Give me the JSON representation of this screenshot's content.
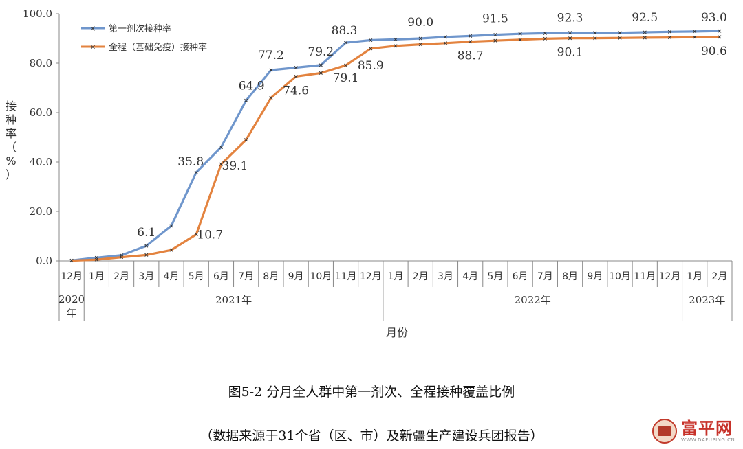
{
  "chart_data": {
    "type": "line",
    "y_axis_title": "接种率（%）",
    "xlabel": "月份",
    "ylim": [
      0,
      100
    ],
    "yticks": [
      "0.0",
      "20.0",
      "40.0",
      "60.0",
      "80.0",
      "100.0"
    ],
    "ytick_values": [
      0,
      20,
      40,
      60,
      80,
      100
    ],
    "months": [
      "12月",
      "1月",
      "2月",
      "3月",
      "4月",
      "5月",
      "6月",
      "7月",
      "8月",
      "9月",
      "10月",
      "11月",
      "12月",
      "1月",
      "2月",
      "3月",
      "4月",
      "5月",
      "6月",
      "7月",
      "8月",
      "9月",
      "10月",
      "11月",
      "12月",
      "1月",
      "2月"
    ],
    "year_groups": [
      {
        "label_top": "2020",
        "label_bottom": "年",
        "start": 0,
        "count": 1
      },
      {
        "label": "2021年",
        "start": 1,
        "count": 12
      },
      {
        "label": "2022年",
        "start": 13,
        "count": 12
      },
      {
        "label": "2023年",
        "start": 25,
        "count": 2
      }
    ],
    "legend_position": "top-left",
    "series": [
      {
        "name": "第一剂次接种率",
        "color": "#6f96cc",
        "values": [
          0.2,
          1.3,
          2.3,
          6.1,
          14.2,
          35.8,
          46.0,
          64.9,
          77.2,
          78.2,
          79.2,
          88.3,
          89.3,
          89.6,
          90.0,
          90.6,
          91.0,
          91.5,
          91.9,
          92.1,
          92.3,
          92.3,
          92.3,
          92.5,
          92.7,
          92.8,
          93.0
        ],
        "labels": [
          {
            "index": 3,
            "text": "6.1"
          },
          {
            "index": 5,
            "text": "35.8"
          },
          {
            "index": 7,
            "text": "64.9"
          },
          {
            "index": 8,
            "text": "77.2"
          },
          {
            "index": 10,
            "text": "79.2"
          },
          {
            "index": 11,
            "text": "88.3"
          },
          {
            "index": 14,
            "text": "90.0"
          },
          {
            "index": 17,
            "text": "91.5"
          },
          {
            "index": 20,
            "text": "92.3"
          },
          {
            "index": 23,
            "text": "92.5"
          },
          {
            "index": 26,
            "text": "93.0"
          }
        ]
      },
      {
        "name": "全程（基础免疫）接种率",
        "color": "#e3833f",
        "values": [
          0.1,
          0.5,
          1.5,
          2.4,
          4.4,
          10.7,
          39.1,
          49.0,
          66.0,
          74.6,
          76.0,
          79.1,
          85.9,
          87.0,
          87.6,
          88.1,
          88.7,
          89.1,
          89.5,
          89.9,
          90.1,
          90.1,
          90.2,
          90.3,
          90.4,
          90.5,
          90.6
        ],
        "labels": [
          {
            "index": 5,
            "text": "10.7"
          },
          {
            "index": 6,
            "text": "39.1"
          },
          {
            "index": 9,
            "text": "74.6"
          },
          {
            "index": 11,
            "text": "79.1"
          },
          {
            "index": 12,
            "text": "85.9"
          },
          {
            "index": 16,
            "text": "88.7"
          },
          {
            "index": 20,
            "text": "90.1"
          },
          {
            "index": 26,
            "text": "90.6"
          }
        ]
      }
    ]
  },
  "caption": {
    "title": "图5-2  分月全人群中第一剂次、全程接种覆盖比例",
    "source": "（数据来源于31个省（区、市）及新疆生产建设兵团报告）"
  },
  "watermark": {
    "name": "富平网",
    "url": "WWW.DAFUPING.CN"
  }
}
